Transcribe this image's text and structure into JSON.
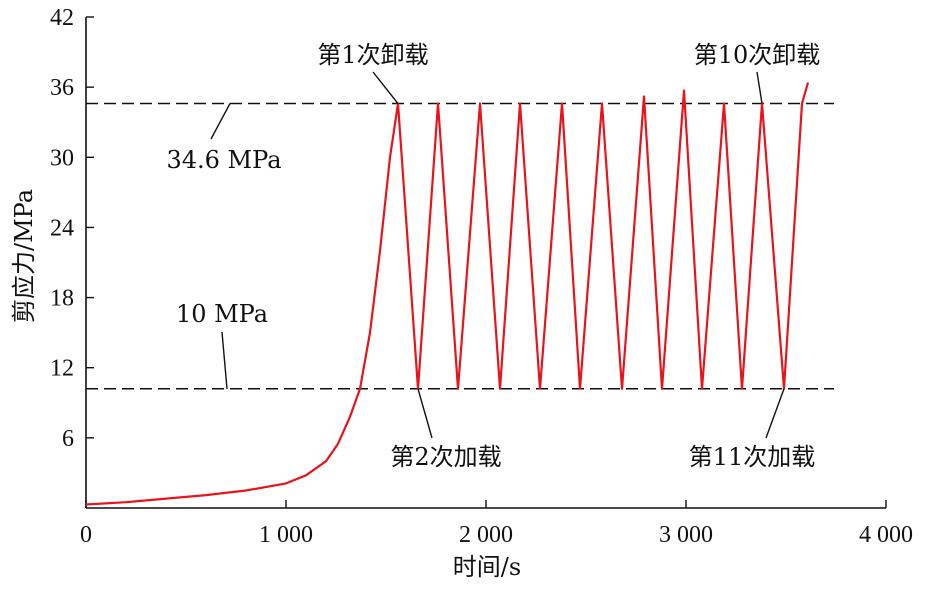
{
  "chart_data": {
    "type": "line",
    "xlabel": "时间/s",
    "ylabel": "剪应力/MPa",
    "xlim": [
      0,
      4000
    ],
    "ylim": [
      0,
      42
    ],
    "x_ticks": [
      0,
      1000,
      2000,
      3000,
      4000
    ],
    "x_tick_labels": [
      "0",
      "1 000",
      "2 000",
      "3 000",
      "4 000"
    ],
    "y_ticks": [
      6,
      12,
      18,
      24,
      30,
      36,
      42
    ],
    "y_tick_labels": [
      "6",
      "12",
      "18",
      "24",
      "30",
      "36",
      "42"
    ],
    "grid": false,
    "series_color": "#e8141c",
    "reference_lines": [
      {
        "y": 34.6,
        "label": "34.6 MPa",
        "style": "dashed"
      },
      {
        "y": 10.2,
        "label": "10 MPa",
        "style": "dashed"
      }
    ],
    "annotations": [
      {
        "text": "第1次卸载",
        "x": 1560,
        "y": 34.6
      },
      {
        "text": "第10次卸载",
        "x": 3380,
        "y": 34.6
      },
      {
        "text": "第2次加载",
        "x": 1660,
        "y": 10.2
      },
      {
        "text": "第11次加载",
        "x": 3490,
        "y": 10.2
      }
    ],
    "series": [
      {
        "x": [
          0,
          200,
          400,
          600,
          800,
          1000,
          1100,
          1200,
          1260,
          1320,
          1370,
          1420,
          1470,
          1520,
          1560,
          1660,
          1760,
          1860,
          1970,
          2070,
          2170,
          2270,
          2380,
          2470,
          2580,
          2680,
          2790,
          2880,
          2990,
          3080,
          3190,
          3280,
          3380,
          3490,
          3580,
          3610
        ],
        "y": [
          0.3,
          0.5,
          0.8,
          1.1,
          1.5,
          2.1,
          2.8,
          4.0,
          5.5,
          7.8,
          10.2,
          15.0,
          22.0,
          30.0,
          34.6,
          10.2,
          34.6,
          10.2,
          34.6,
          10.2,
          34.6,
          10.2,
          34.6,
          10.2,
          34.6,
          10.2,
          35.2,
          10.2,
          35.7,
          10.2,
          34.6,
          10.2,
          34.6,
          10.2,
          34.6,
          36.4
        ]
      }
    ]
  }
}
